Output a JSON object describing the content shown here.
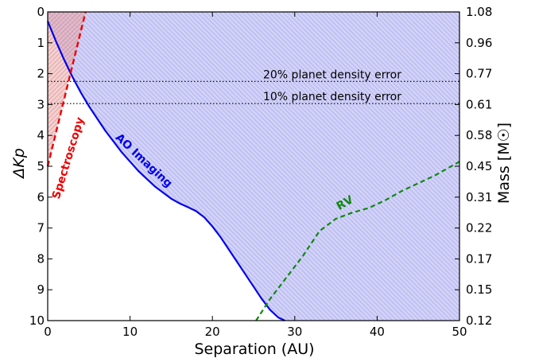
{
  "chart_data": {
    "type": "line",
    "xlabel": "Separation (AU)",
    "ylabel_left": "ΔKp",
    "ylabel_right": "Mass [M☉]",
    "xlim": [
      0,
      50
    ],
    "ylim": [
      10,
      0
    ],
    "x_ticks": [
      0,
      10,
      20,
      30,
      40,
      50
    ],
    "y_ticks": [
      0,
      1,
      2,
      3,
      4,
      5,
      6,
      7,
      8,
      9,
      10
    ],
    "right_ticks": [
      {
        "dkp": 0,
        "label": "1.08"
      },
      {
        "dkp": 1,
        "label": "0.96"
      },
      {
        "dkp": 2,
        "label": "0.77"
      },
      {
        "dkp": 3,
        "label": "0.61"
      },
      {
        "dkp": 4,
        "label": "0.58"
      },
      {
        "dkp": 5,
        "label": "0.45"
      },
      {
        "dkp": 6,
        "label": "0.31"
      },
      {
        "dkp": 7,
        "label": "0.22"
      },
      {
        "dkp": 8,
        "label": "0.17"
      },
      {
        "dkp": 9,
        "label": "0.15"
      },
      {
        "dkp": 10,
        "label": "0.12"
      }
    ],
    "grid": false,
    "series": [
      {
        "name": "AO Imaging",
        "color": "#0000ee",
        "style": "solid",
        "fill": "#c8c8f5",
        "x": [
          0,
          1,
          2,
          3,
          4,
          5,
          6,
          7,
          8,
          9,
          10,
          11,
          12,
          13,
          14,
          15,
          16,
          17,
          18,
          19,
          20,
          21,
          22,
          23,
          24,
          25,
          26,
          27,
          28,
          28.8
        ],
        "y": [
          0.3,
          0.95,
          1.55,
          2.1,
          2.6,
          3.05,
          3.45,
          3.85,
          4.2,
          4.55,
          4.85,
          5.15,
          5.4,
          5.65,
          5.85,
          6.05,
          6.2,
          6.32,
          6.45,
          6.65,
          6.95,
          7.3,
          7.7,
          8.1,
          8.5,
          8.9,
          9.3,
          9.65,
          9.9,
          10.0
        ]
      },
      {
        "name": "Spectroscopy",
        "color": "#ee0000",
        "style": "dashed",
        "fill": "#e8b8b8",
        "x": [
          0,
          4.6
        ],
        "y": [
          5.0,
          0.0
        ]
      },
      {
        "name": "RV",
        "color": "#118811",
        "style": "dashed",
        "x": [
          25.3,
          27,
          29,
          31,
          33,
          35,
          37,
          39,
          41,
          43,
          45,
          47,
          49,
          50
        ],
        "y": [
          10.0,
          9.3,
          8.6,
          7.9,
          7.1,
          6.7,
          6.5,
          6.35,
          6.1,
          5.8,
          5.55,
          5.3,
          5.0,
          4.85
        ]
      }
    ],
    "hlines": [
      {
        "y": 2.25,
        "label": "20% planet density error"
      },
      {
        "y": 2.97,
        "label": "10% planet density error"
      }
    ]
  }
}
